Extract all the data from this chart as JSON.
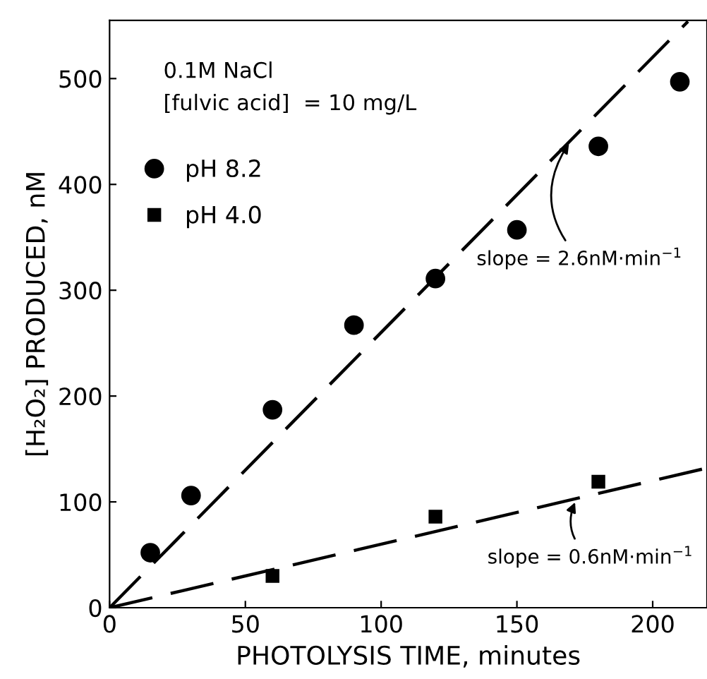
{
  "chart_data": {
    "type": "scatter",
    "xlabel": "PHOTOLYSIS TIME, minutes",
    "ylabel": "[H₂O₂] PRODUCED, nM",
    "xlim": [
      0,
      220
    ],
    "ylim": [
      0,
      555
    ],
    "xticks": [
      0,
      50,
      100,
      150,
      200
    ],
    "yticks": [
      0,
      100,
      200,
      300,
      400,
      500
    ],
    "grid": false,
    "legend": "top left",
    "series": [
      {
        "name": "pH 8.2",
        "marker": "circle",
        "color": "#000000",
        "x": [
          15,
          30,
          60,
          90,
          120,
          150,
          180,
          210
        ],
        "values": [
          52,
          106,
          187,
          267,
          311,
          357,
          436,
          497
        ]
      },
      {
        "name": "pH 4.0",
        "marker": "square",
        "color": "#000000",
        "x": [
          60,
          120,
          180
        ],
        "values": [
          30,
          86,
          119
        ]
      },
      {
        "type": "line",
        "line_style": "dashed",
        "marker": "none",
        "color": "#000000",
        "x": [
          0,
          213
        ],
        "values": [
          0,
          554
        ]
      },
      {
        "type": "line",
        "line_style": "dashed",
        "marker": "none",
        "color": "#000000",
        "x": [
          0,
          220
        ],
        "values": [
          0,
          132
        ]
      }
    ],
    "annotations": [
      "0.1M NaCl",
      "[fulvic acid]  = 10 mg/L",
      {
        "text": "slope = 2.6nM·min$^{−1}$",
        "x": 170,
        "y": 442
      },
      {
        "text": "slope = 0.6nM·min$^{−1}$",
        "x": 172,
        "y": 103
      }
    ]
  }
}
